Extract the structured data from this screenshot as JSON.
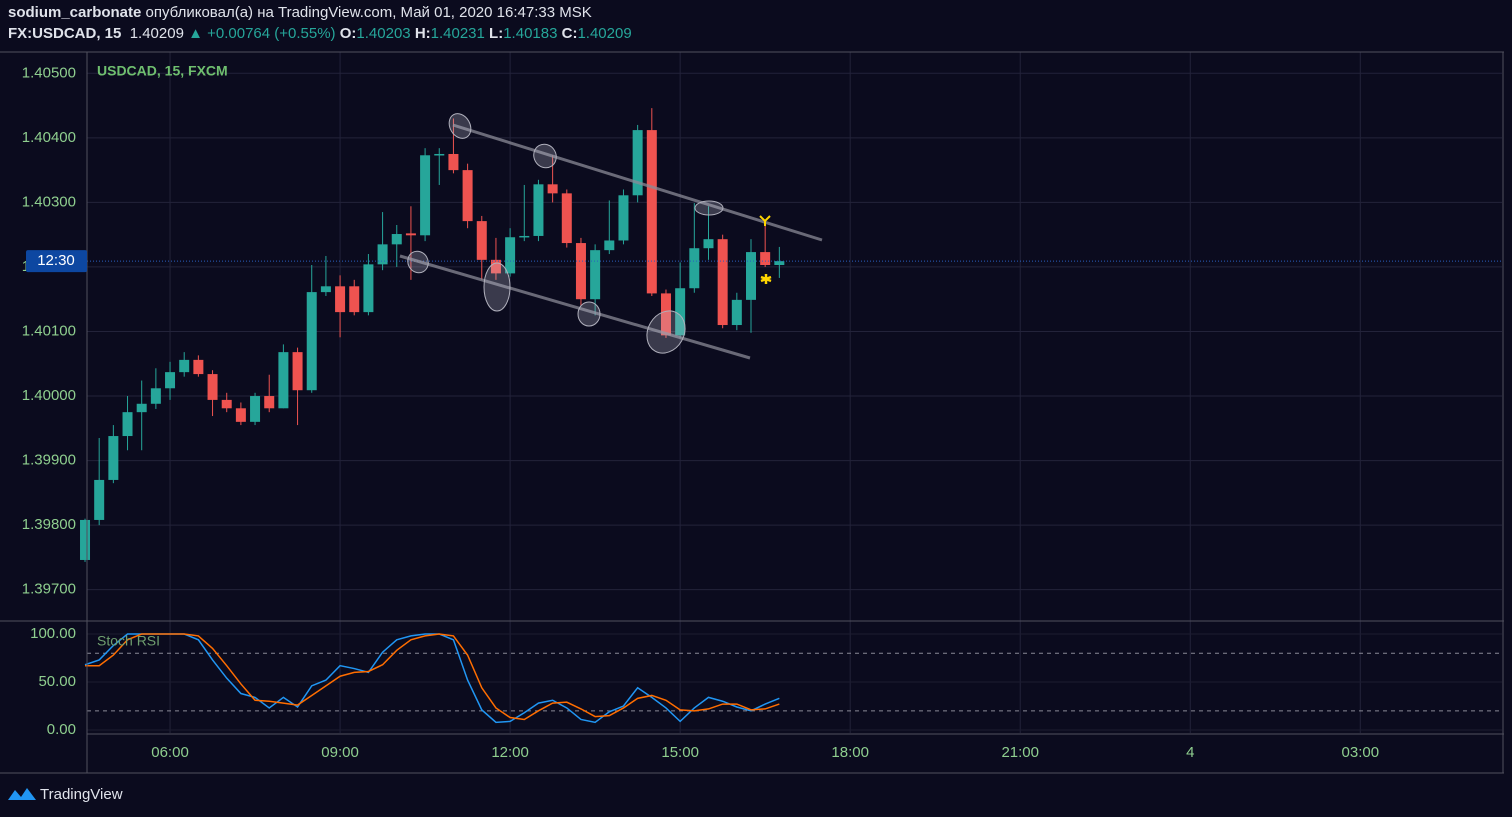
{
  "header": {
    "user": "sodium_carbonate",
    "published": "опубликовал(а) на TradingView.com, Май 01, 2020 16:47:33 MSK",
    "symbol": "FX:USDCAD, 15",
    "price": "1.40209",
    "change": "▲ +0.00764 (+0.55%)",
    "open_label": "O:",
    "open": "1.40203",
    "high_label": "H:",
    "high": "1.40231",
    "low_label": "L:",
    "low": "1.40183",
    "close_label": "C:",
    "close": "1.40209"
  },
  "footer": "TradingView",
  "chart_data": [
    {
      "type": "candlestick",
      "title": "USDCAD, 15, FXCM",
      "x": [
        4.5,
        4.75,
        5,
        5.25,
        5.5,
        5.75,
        6,
        6.25,
        6.5,
        6.75,
        7,
        7.25,
        7.5,
        7.75,
        8,
        8.25,
        8.5,
        8.75,
        9,
        9.25,
        9.5,
        9.75,
        10,
        10.25,
        10.5,
        10.75,
        11,
        11.25,
        11.5,
        11.75,
        12,
        12.25,
        12.5,
        12.75,
        13,
        13.25,
        13.5,
        13.75,
        14,
        14.25,
        14.5,
        14.75,
        15,
        15.25,
        15.5,
        15.75,
        16,
        16.25,
        16.5,
        16.75
      ],
      "open": [
        1.39746,
        1.39808,
        1.3987,
        1.39938,
        1.39975,
        1.39988,
        1.40012,
        1.40037,
        1.40056,
        1.40034,
        1.39994,
        1.39981,
        1.3996,
        1.4,
        1.39981,
        1.40068,
        1.40009,
        1.40161,
        1.4017,
        1.4017,
        1.4013,
        1.40204,
        1.40235,
        1.40252,
        1.40249,
        1.40373,
        1.40375,
        1.4035,
        1.40271,
        1.40211,
        1.4019,
        1.40246,
        1.40248,
        1.40328,
        1.40314,
        1.40237,
        1.4015,
        1.40226,
        1.40241,
        1.40311,
        1.40412,
        1.40159,
        1.40094,
        1.40167,
        1.40229,
        1.40243,
        1.4011,
        1.40149,
        1.40223,
        1.40203
      ],
      "high": [
        1.3981,
        1.39935,
        1.39955,
        1.4,
        1.40024,
        1.40043,
        1.40053,
        1.40068,
        1.40063,
        1.4004,
        1.40005,
        1.3999,
        1.40005,
        1.40033,
        1.4008,
        1.40075,
        1.40203,
        1.40217,
        1.40187,
        1.4018,
        1.4022,
        1.40285,
        1.40265,
        1.40294,
        1.40384,
        1.40384,
        1.4043,
        1.4036,
        1.40279,
        1.40245,
        1.4026,
        1.40327,
        1.40335,
        1.40373,
        1.4032,
        1.40245,
        1.40235,
        1.40303,
        1.4032,
        1.4042,
        1.40446,
        1.40165,
        1.40207,
        1.40299,
        1.40294,
        1.4025,
        1.4016,
        1.40243,
        1.40269,
        1.40231
      ],
      "low": [
        1.39743,
        1.398,
        1.39865,
        1.39916,
        1.39916,
        1.3998,
        1.39994,
        1.4003,
        1.4003,
        1.39969,
        1.39975,
        1.39955,
        1.39955,
        1.39975,
        1.39981,
        1.39955,
        1.40005,
        1.40155,
        1.40091,
        1.40125,
        1.40125,
        1.40195,
        1.402,
        1.4018,
        1.4024,
        1.40327,
        1.40345,
        1.4026,
        1.4018,
        1.4018,
        1.40185,
        1.4024,
        1.4024,
        1.403,
        1.4023,
        1.4014,
        1.40125,
        1.4022,
        1.40235,
        1.403,
        1.40155,
        1.4009,
        1.4009,
        1.4016,
        1.40211,
        1.40105,
        1.40102,
        1.40098,
        1.402,
        1.40183
      ],
      "close": [
        1.39808,
        1.3987,
        1.39938,
        1.39975,
        1.39988,
        1.40012,
        1.40037,
        1.40056,
        1.40034,
        1.39994,
        1.39981,
        1.3996,
        1.4,
        1.39981,
        1.40068,
        1.40009,
        1.40161,
        1.4017,
        1.4013,
        1.4013,
        1.40204,
        1.40235,
        1.40251,
        1.40249,
        1.40373,
        1.40375,
        1.4035,
        1.40271,
        1.40211,
        1.4019,
        1.40246,
        1.40248,
        1.40328,
        1.40314,
        1.40237,
        1.4015,
        1.40226,
        1.40241,
        1.40311,
        1.40412,
        1.40159,
        1.40094,
        1.40167,
        1.40229,
        1.40243,
        1.4011,
        1.40149,
        1.40223,
        1.40203,
        1.40209
      ],
      "up_color": "#26a69a",
      "down_color": "#ef5350",
      "xlim": [
        4.535,
        29.5
      ],
      "xticks": [
        {
          "value": 6,
          "label": "06:00"
        },
        {
          "value": 9,
          "label": "09:00"
        },
        {
          "value": 12,
          "label": "12:00"
        },
        {
          "value": 15,
          "label": "15:00"
        },
        {
          "value": 18,
          "label": "18:00"
        },
        {
          "value": 21,
          "label": "21:00"
        },
        {
          "value": 24,
          "label": "4"
        },
        {
          "value": 27,
          "label": "03:00"
        }
      ],
      "ylim": [
        1.39653,
        1.40533
      ],
      "yticks": [
        {
          "value": 1.405,
          "label": "1.40500"
        },
        {
          "value": 1.404,
          "label": "1.40400"
        },
        {
          "value": 1.403,
          "label": "1.40300"
        },
        {
          "value": 1.402,
          "label": "1.40200"
        },
        {
          "value": 1.401,
          "label": "1.40100"
        },
        {
          "value": 1.4,
          "label": "1.40000"
        },
        {
          "value": 1.399,
          "label": "1.39900"
        },
        {
          "value": 1.398,
          "label": "1.39800"
        },
        {
          "value": 1.397,
          "label": "1.39700"
        }
      ],
      "grid": true,
      "last_price": 1.40209,
      "last_price_label": "12:30"
    },
    {
      "type": "line",
      "title": "Stoch RSI",
      "x": [
        4.5,
        4.75,
        5,
        5.25,
        5.5,
        5.75,
        6,
        6.25,
        6.5,
        6.75,
        7,
        7.25,
        7.5,
        7.75,
        8,
        8.25,
        8.5,
        8.75,
        9,
        9.25,
        9.5,
        9.75,
        10,
        10.25,
        10.5,
        10.75,
        11,
        11.25,
        11.5,
        11.75,
        12,
        12.25,
        12.5,
        12.75,
        13,
        13.25,
        13.5,
        13.75,
        14,
        14.25,
        14.5,
        14.75,
        15,
        15.25,
        15.5,
        15.75,
        16,
        16.25,
        16.5,
        16.75
      ],
      "series": [
        {
          "color": "#2196f3",
          "values": [
            68,
            73,
            88,
            100,
            100,
            100,
            100,
            100,
            94,
            73,
            54,
            38,
            34,
            23,
            34,
            24,
            46,
            52,
            67,
            64,
            60,
            81,
            94,
            98,
            100,
            100,
            94,
            52,
            21,
            8,
            9,
            18,
            28,
            31,
            23,
            11,
            8,
            19,
            25,
            44,
            34,
            23,
            9,
            23,
            34,
            30,
            24,
            20,
            27,
            33
          ]
        },
        {
          "color": "#ff6d00",
          "values": [
            67,
            67,
            78,
            94,
            100,
            100,
            100,
            100,
            98,
            85,
            67,
            48,
            31,
            30,
            28,
            26,
            36,
            46,
            56,
            60,
            61,
            68,
            83,
            94,
            98,
            100,
            98,
            78,
            44,
            23,
            13,
            11,
            20,
            28,
            29,
            22,
            14,
            15,
            23,
            33,
            36,
            31,
            21,
            20,
            22,
            27,
            27,
            21,
            22,
            27
          ]
        }
      ],
      "xlim": [
        4.535,
        29.5
      ],
      "ylim": [
        -3.1,
        112.5
      ],
      "yticks": [
        {
          "value": 100,
          "label": "100.00"
        },
        {
          "value": 50,
          "label": "50.00"
        },
        {
          "value": 0,
          "label": "0.00"
        }
      ],
      "bands": [
        80,
        20
      ]
    }
  ]
}
